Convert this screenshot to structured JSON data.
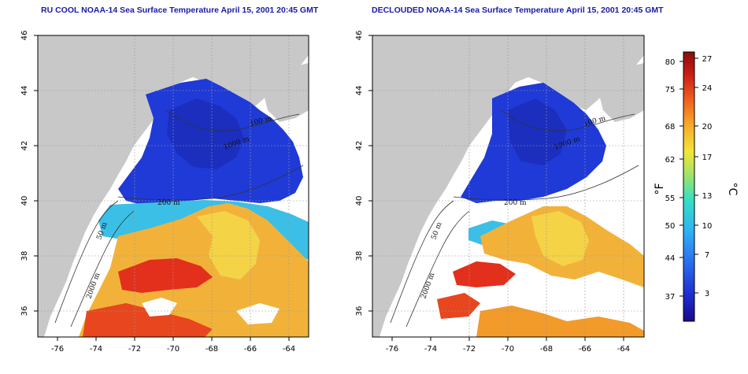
{
  "panels": [
    {
      "id": "raw",
      "title": "RU COOL NOAA-14 Sea Surface Temperature April 15, 2001 20:45 GMT",
      "contours": [
        "100 m",
        "200 m",
        "1000 m",
        "2000 m",
        "50 m"
      ]
    },
    {
      "id": "declouded",
      "title": "DECLOUDED NOAA-14 Sea Surface Temperature April 15, 2001 20:45 GMT",
      "contours": [
        "100 m",
        "200 m",
        "1000 m",
        "2000 m",
        "50 m"
      ]
    }
  ],
  "axes": {
    "lon_ticks": [
      "-76",
      "-74",
      "-72",
      "-70",
      "-68",
      "-66",
      "-64"
    ],
    "lat_ticks": [
      "46",
      "44",
      "42",
      "40",
      "38",
      "36"
    ],
    "lon_range": [
      -77.2,
      -63.2
    ],
    "lat_range": [
      35,
      46
    ]
  },
  "colorbar": {
    "unit_left": "°F",
    "unit_right": "°C",
    "fahrenheit_ticks": [
      "80",
      "75",
      "68",
      "62",
      "55",
      "50",
      "44",
      "37"
    ],
    "celsius_ticks": [
      "27",
      "24",
      "20",
      "17",
      "13",
      "10",
      "7",
      "3"
    ],
    "celsius_range": [
      0,
      28
    ],
    "colors": [
      "#1a0a8c",
      "#1f2ecf",
      "#2a6ff0",
      "#2fb5f2",
      "#34e0c4",
      "#9ce36b",
      "#f2e53a",
      "#f7a928",
      "#ee5a1e",
      "#c81c16",
      "#8a0d0d"
    ]
  },
  "colors": {
    "land": "#c8c8c8",
    "cold": "#1e3fd8",
    "warm": "#f5a52a",
    "hot": "#e8321e",
    "title": "#1a1aa8"
  }
}
